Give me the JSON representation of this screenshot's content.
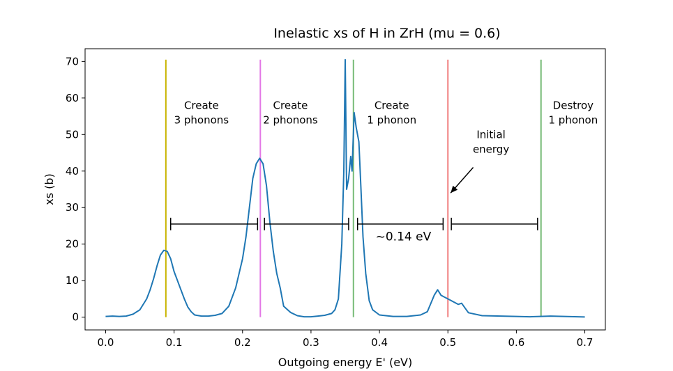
{
  "chart_data": {
    "type": "line",
    "title": "Inelastic xs of H in ZrH  (mu = 0.6)",
    "xlabel": "Outgoing energy E' (eV)",
    "ylabel": "xs (b)",
    "xlim": [
      -0.03,
      0.73
    ],
    "ylim": [
      -3.5,
      73.5
    ],
    "xticks": [
      0.0,
      0.1,
      0.2,
      0.3,
      0.4,
      0.5,
      0.6,
      0.7
    ],
    "xtick_labels": [
      "0.0",
      "0.1",
      "0.2",
      "0.3",
      "0.4",
      "0.5",
      "0.6",
      "0.7"
    ],
    "yticks": [
      0,
      10,
      20,
      30,
      40,
      50,
      60,
      70
    ],
    "ytick_labels": [
      "0",
      "10",
      "20",
      "30",
      "40",
      "50",
      "60",
      "70"
    ],
    "grid": false,
    "series": [
      {
        "color": "#1f77b4",
        "x": [
          0.0,
          0.01,
          0.02,
          0.03,
          0.04,
          0.05,
          0.06,
          0.065,
          0.07,
          0.075,
          0.08,
          0.085,
          0.09,
          0.095,
          0.1,
          0.105,
          0.11,
          0.115,
          0.12,
          0.125,
          0.13,
          0.14,
          0.15,
          0.16,
          0.17,
          0.18,
          0.19,
          0.2,
          0.205,
          0.21,
          0.215,
          0.22,
          0.225,
          0.23,
          0.235,
          0.24,
          0.245,
          0.25,
          0.255,
          0.26,
          0.27,
          0.28,
          0.29,
          0.3,
          0.31,
          0.32,
          0.33,
          0.335,
          0.34,
          0.345,
          0.348,
          0.35,
          0.352,
          0.355,
          0.358,
          0.36,
          0.363,
          0.366,
          0.37,
          0.373,
          0.376,
          0.38,
          0.385,
          0.39,
          0.4,
          0.42,
          0.44,
          0.46,
          0.47,
          0.48,
          0.485,
          0.49,
          0.5,
          0.51,
          0.515,
          0.52,
          0.53,
          0.55,
          0.6,
          0.62,
          0.65,
          0.7
        ],
        "y": [
          0.2,
          0.3,
          0.2,
          0.3,
          0.8,
          2,
          5,
          7.5,
          10.5,
          14,
          17,
          18.3,
          18,
          16,
          12.5,
          10,
          7.5,
          5,
          2.8,
          1.5,
          0.6,
          0.3,
          0.3,
          0.5,
          1,
          3,
          8,
          16,
          22,
          30,
          38,
          42,
          43.5,
          42,
          36,
          26,
          18,
          12,
          8,
          3,
          1.3,
          0.4,
          0.1,
          0.1,
          0.3,
          0.5,
          1,
          2,
          5,
          20,
          40,
          70.5,
          35,
          38,
          44,
          40,
          56,
          52,
          48,
          35,
          22,
          12,
          4.5,
          2,
          0.6,
          0.2,
          0.2,
          0.6,
          1.5,
          6,
          7.5,
          6,
          5,
          4,
          3.5,
          3.8,
          1.2,
          0.4,
          0.2,
          0.1,
          0.3,
          0.05
        ]
      }
    ],
    "vlines": [
      {
        "x": 0.088,
        "color": "#c8b400"
      },
      {
        "x": 0.226,
        "color": "#e377e6"
      },
      {
        "x": 0.362,
        "color": "#77bb77"
      },
      {
        "x": 0.5,
        "color": "#f08080"
      },
      {
        "x": 0.636,
        "color": "#77bb77"
      }
    ],
    "annotations": [
      {
        "text": [
          "Create",
          "3 phonons"
        ],
        "x": 0.14,
        "y": 57
      },
      {
        "text": [
          "Create",
          "2 phonons"
        ],
        "x": 0.27,
        "y": 57
      },
      {
        "text": [
          "Create",
          "1 phonon"
        ],
        "x": 0.418,
        "y": 57
      },
      {
        "text": [
          "Initial",
          "energy"
        ],
        "x": 0.563,
        "y": 49
      },
      {
        "text": [
          "Destroy",
          "1 phonon"
        ],
        "x": 0.683,
        "y": 57
      }
    ],
    "spacing_label": {
      "text": "~0.14 eV",
      "x": 0.435,
      "y": 21
    },
    "brackets": [
      {
        "x1": 0.095,
        "x2": 0.222,
        "y": 25.5
      },
      {
        "x1": 0.232,
        "x2": 0.355,
        "y": 25.5
      },
      {
        "x1": 0.368,
        "x2": 0.493,
        "y": 25.5
      },
      {
        "x1": 0.505,
        "x2": 0.631,
        "y": 25.5
      }
    ],
    "arrow": {
      "from_x": 0.537,
      "from_y": 41,
      "to_x": 0.504,
      "to_y": 34
    }
  }
}
